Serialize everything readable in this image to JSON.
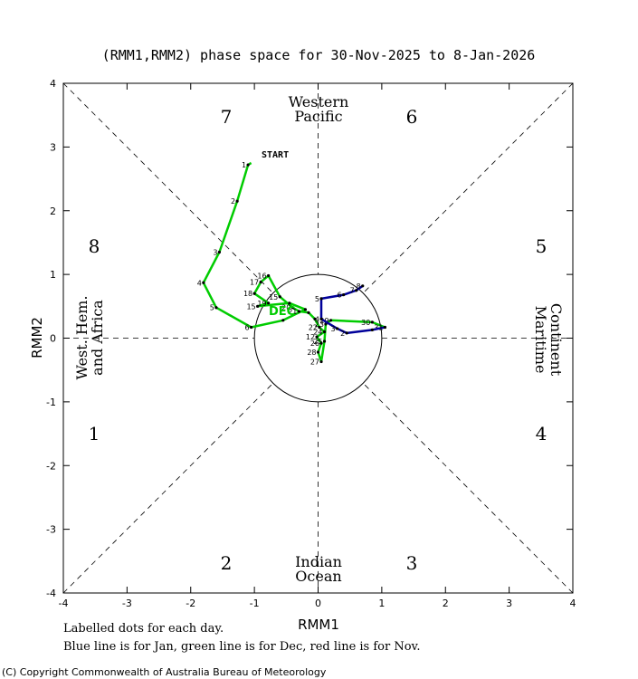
{
  "chart_data": {
    "type": "line",
    "title": "(RMM1,RMM2) phase space for 30-Nov-2025 to  8-Jan-2026",
    "xlabel": "RMM1",
    "ylabel": "RMM2",
    "xlim": [
      -4,
      4
    ],
    "ylim": [
      -4,
      4
    ],
    "x_ticks": [
      "-4",
      "-3",
      "-2",
      "-1",
      "0",
      "1",
      "2",
      "3",
      "4"
    ],
    "y_ticks": [
      "-4",
      "-3",
      "-2",
      "-1",
      "0",
      "1",
      "2",
      "3",
      "4"
    ],
    "grid": false,
    "unit_circle_radius": 1,
    "phase_labels": [
      "1",
      "2",
      "3",
      "4",
      "5",
      "6",
      "7",
      "8"
    ],
    "region_labels": {
      "top": [
        "Western",
        "Pacific"
      ],
      "bottom": [
        "Indian",
        "Ocean"
      ],
      "left": [
        "West. Hem.",
        "and Africa"
      ],
      "right": [
        "Maritime",
        "Continent"
      ]
    },
    "start_label": "START",
    "month_label": "DEC",
    "series": [
      {
        "color": "#00cc00",
        "points": [
          {
            "x": -1.05,
            "y": 2.75,
            "label": "START"
          },
          {
            "x": -1.1,
            "y": 2.72,
            "label": "1"
          },
          {
            "x": -1.27,
            "y": 2.15,
            "label": "2"
          },
          {
            "x": -1.55,
            "y": 1.35,
            "label": "3"
          },
          {
            "x": -1.8,
            "y": 0.87,
            "label": "4"
          },
          {
            "x": -1.6,
            "y": 0.48,
            "label": "5"
          },
          {
            "x": -1.05,
            "y": 0.17,
            "label": "6"
          },
          {
            "x": -0.55,
            "y": 0.28,
            "label": ""
          },
          {
            "x": -0.2,
            "y": 0.45,
            "label": ""
          },
          {
            "x": -0.45,
            "y": 0.55,
            "label": ""
          },
          {
            "x": -0.95,
            "y": 0.5,
            "label": "15"
          },
          {
            "x": -0.78,
            "y": 0.55,
            "label": "19"
          },
          {
            "x": -1.0,
            "y": 0.7,
            "label": "18"
          },
          {
            "x": -0.9,
            "y": 0.88,
            "label": "17"
          },
          {
            "x": -0.78,
            "y": 0.98,
            "label": "16"
          },
          {
            "x": -0.6,
            "y": 0.65,
            "label": "15"
          },
          {
            "x": -0.4,
            "y": 0.48,
            "label": "20"
          },
          {
            "x": -0.3,
            "y": 0.42,
            "label": "21"
          },
          {
            "x": -0.15,
            "y": 0.4,
            "label": ""
          },
          {
            "x": -0.05,
            "y": 0.3,
            "label": ""
          },
          {
            "x": 0.02,
            "y": 0.17,
            "label": "22"
          },
          {
            "x": 0.1,
            "y": 0.1,
            "label": "24"
          },
          {
            "x": -0.02,
            "y": 0.02,
            "label": "12"
          },
          {
            "x": 0.05,
            "y": -0.08,
            "label": "26"
          },
          {
            "x": 0.0,
            "y": -0.22,
            "label": "28"
          },
          {
            "x": 0.05,
            "y": -0.37,
            "label": "27"
          },
          {
            "x": 0.1,
            "y": -0.05,
            "label": "25"
          },
          {
            "x": 0.12,
            "y": 0.22,
            "label": "23"
          },
          {
            "x": 0.2,
            "y": 0.28,
            "label": "29"
          },
          {
            "x": 0.85,
            "y": 0.25,
            "label": "30"
          },
          {
            "x": 1.05,
            "y": 0.17,
            "label": "31"
          }
        ]
      },
      {
        "color": "#00009a",
        "points": [
          {
            "x": 1.05,
            "y": 0.17,
            "label": "1"
          },
          {
            "x": 0.85,
            "y": 0.13,
            "label": ""
          },
          {
            "x": 0.45,
            "y": 0.08,
            "label": "2"
          },
          {
            "x": 0.3,
            "y": 0.15,
            "label": "3"
          },
          {
            "x": 0.05,
            "y": 0.3,
            "label": "4"
          },
          {
            "x": 0.05,
            "y": 0.62,
            "label": "5"
          },
          {
            "x": 0.4,
            "y": 0.68,
            "label": "6"
          },
          {
            "x": 0.6,
            "y": 0.75,
            "label": "7"
          },
          {
            "x": 0.7,
            "y": 0.82,
            "label": "8"
          }
        ]
      }
    ]
  },
  "footer": {
    "note1": "Labelled dots for each day.",
    "note2": "Blue line is for Jan, green line is for Dec, red line is for Nov.",
    "copyright": "(C) Copyright Commonwealth of Australia Bureau of Meteorology"
  }
}
